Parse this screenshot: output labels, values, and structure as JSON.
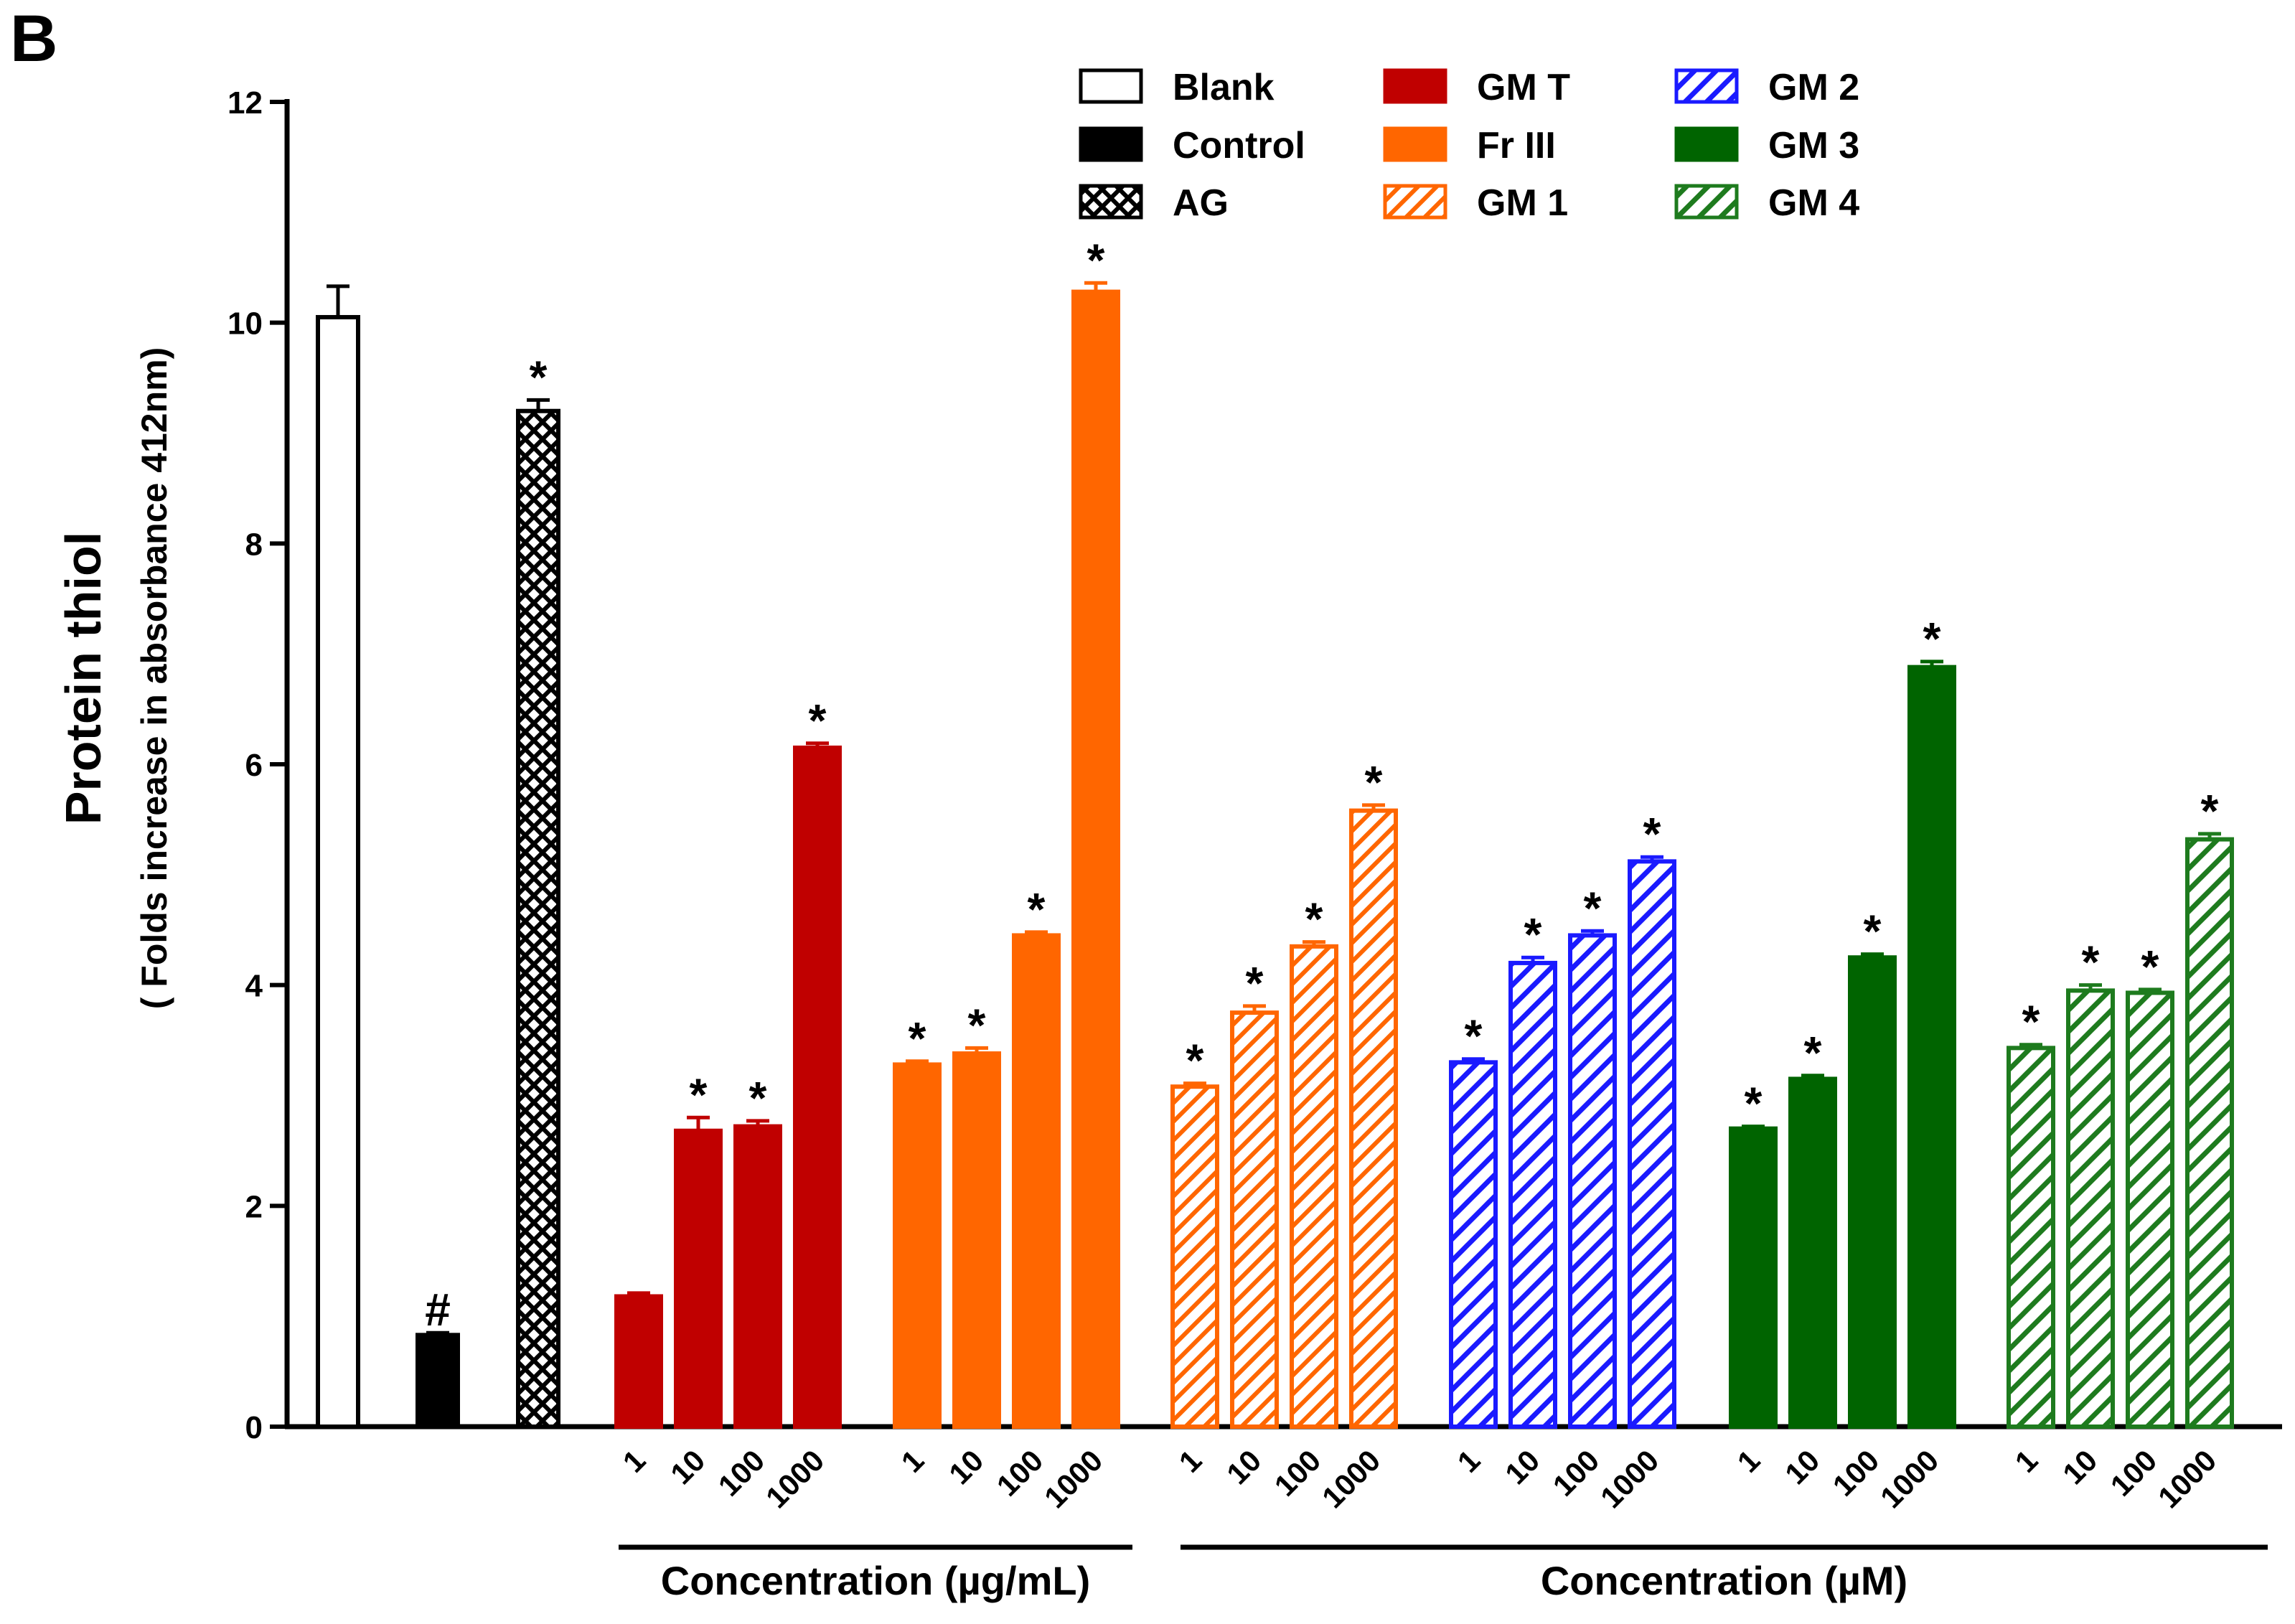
{
  "panel_label": "B",
  "chart_data": {
    "type": "bar",
    "title": "",
    "ylabel": "Protein thiol",
    "ylabel_sub": "( Folds increase in absorbance 412nm)",
    "ylim": [
      0,
      12
    ],
    "yticks": [
      0,
      2,
      4,
      6,
      8,
      10,
      12
    ],
    "grid": false,
    "legend_position": "top",
    "concentration_ticks": [
      "1",
      "10",
      "100",
      "1000"
    ],
    "group_labels": [
      {
        "label": "Concentration (µg/mL)",
        "spans": [
          "GM T",
          "Fr III"
        ]
      },
      {
        "label": "Concentration (µM)",
        "spans": [
          "GM 1",
          "GM 2",
          "GM 3",
          "GM 4"
        ]
      }
    ],
    "series": [
      {
        "name": "Blank",
        "color": "#ffffff",
        "stroke": "#000000",
        "pattern": "none",
        "values": [
          10.05
        ],
        "errors": [
          0.28
        ],
        "marks": [
          ""
        ]
      },
      {
        "name": "Control",
        "color": "#000000",
        "stroke": "#000000",
        "pattern": "none",
        "values": [
          0.83
        ],
        "errors": [
          0.02
        ],
        "marks": [
          "#"
        ]
      },
      {
        "name": "AG",
        "color": "#000000",
        "stroke": "#000000",
        "pattern": "crosshatch",
        "values": [
          9.2
        ],
        "errors": [
          0.1
        ],
        "marks": [
          "*"
        ]
      },
      {
        "name": "GM T",
        "color": "#c00000",
        "stroke": "#c00000",
        "pattern": "none",
        "values": [
          1.18,
          2.68,
          2.72,
          6.15
        ],
        "errors": [
          0.03,
          0.12,
          0.05,
          0.04
        ],
        "marks": [
          "",
          "*",
          "*",
          "*"
        ]
      },
      {
        "name": "Fr III",
        "color": "#ff6600",
        "stroke": "#ff6600",
        "pattern": "none",
        "values": [
          3.28,
          3.38,
          4.45,
          10.28
        ],
        "errors": [
          0.03,
          0.05,
          0.03,
          0.08
        ],
        "marks": [
          "*",
          "*",
          "*",
          "*"
        ]
      },
      {
        "name": "GM 1",
        "color": "#ff6600",
        "stroke": "#ff6600",
        "pattern": "hatch",
        "values": [
          3.08,
          3.75,
          4.35,
          5.58
        ],
        "errors": [
          0.03,
          0.06,
          0.04,
          0.05
        ],
        "marks": [
          "*",
          "*",
          "*",
          "*"
        ]
      },
      {
        "name": "GM 2",
        "color": "#1a1aff",
        "stroke": "#1a1aff",
        "pattern": "hatch",
        "values": [
          3.3,
          4.2,
          4.45,
          5.12
        ],
        "errors": [
          0.03,
          0.05,
          0.04,
          0.04
        ],
        "marks": [
          "*",
          "*",
          "*",
          "*"
        ]
      },
      {
        "name": "GM 3",
        "color": "#006400",
        "stroke": "#006400",
        "pattern": "none",
        "values": [
          2.7,
          3.15,
          4.25,
          6.88
        ],
        "errors": [
          0.02,
          0.03,
          0.03,
          0.05
        ],
        "marks": [
          "*",
          "*",
          "*",
          "*"
        ]
      },
      {
        "name": "GM 4",
        "color": "#1e7b1e",
        "stroke": "#1e7b1e",
        "pattern": "hatch",
        "values": [
          3.43,
          3.95,
          3.93,
          5.32
        ],
        "errors": [
          0.03,
          0.05,
          0.03,
          0.05
        ],
        "marks": [
          "*",
          "*",
          "*",
          "*"
        ]
      }
    ]
  }
}
